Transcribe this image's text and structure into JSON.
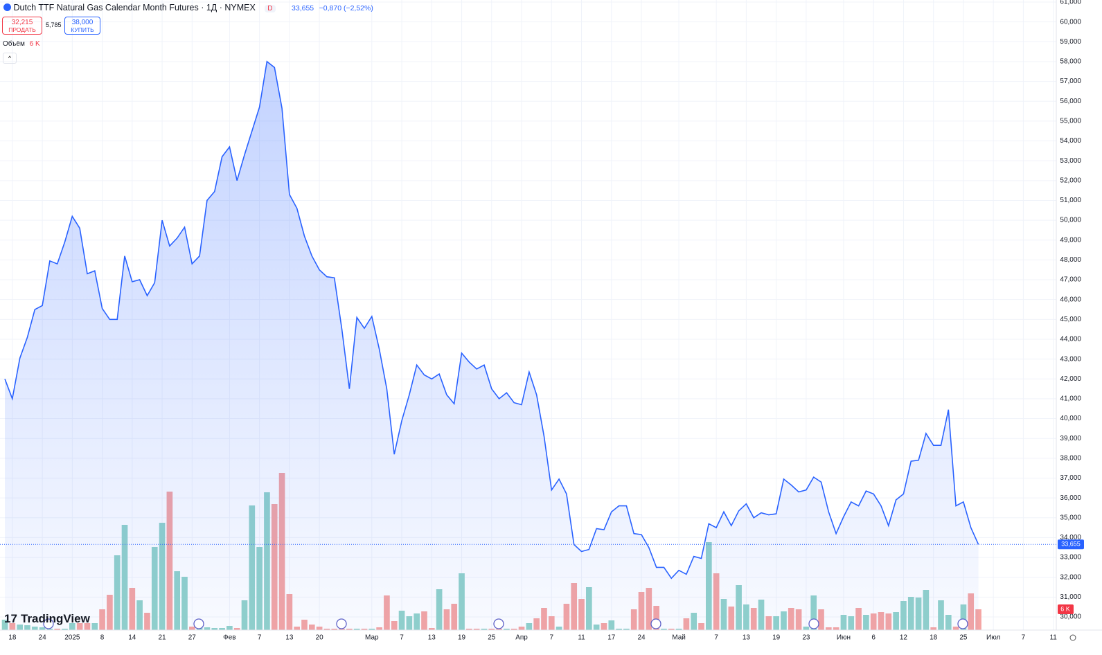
{
  "header": {
    "title": "Dutch TTF Natural Gas Calendar Month Futures · 1Д · NYMEX",
    "badge": "D",
    "last": "33,655",
    "change": "−0,870 (−2,52%)",
    "sell_price": "32,215",
    "sell_label": "ПРОДАТЬ",
    "spread": "5,785",
    "buy_price": "38,000",
    "buy_label": "КУПИТЬ",
    "volume_label": "Объём",
    "volume_value": "6 K",
    "logo": "TradingView"
  },
  "chart_data": {
    "type": "line",
    "color": "#2962ff",
    "grid": true,
    "values": [
      42000,
      41000,
      43050,
      44100,
      45500,
      45700,
      47950,
      47800,
      48900,
      50200,
      49600,
      47300,
      47450,
      45550,
      45000,
      45000,
      48200,
      46900,
      47000,
      46200,
      46850,
      50000,
      48700,
      49100,
      49650,
      47800,
      48200,
      51000,
      51450,
      53200,
      53700,
      52000,
      53300,
      54500,
      55700,
      58000,
      57700,
      55650,
      51300,
      50600,
      49200,
      48200,
      47500,
      47150,
      47100,
      44500,
      41500,
      45100,
      44550,
      45150,
      43500,
      41500,
      38200,
      39900,
      41200,
      42700,
      42200,
      42000,
      42250,
      41200,
      40750,
      43300,
      42850,
      42500,
      42700,
      41500,
      41000,
      41300,
      40800,
      40700,
      42350,
      41200,
      39100,
      36400,
      36950,
      36200,
      33650,
      33300,
      33400,
      34450,
      34400,
      35300,
      35600,
      35600,
      34200,
      34150,
      33500,
      32500,
      32500,
      31950,
      32350,
      32150,
      33050,
      32950,
      34700,
      34500,
      35300,
      34600,
      35350,
      35700,
      35000,
      35250,
      35150,
      35200,
      36950,
      36650,
      36300,
      36400,
      37050,
      36800,
      35300,
      34200,
      35050,
      35800,
      35600,
      36350,
      36200,
      35600,
      34600,
      35900,
      36200,
      37850,
      37900,
      39250,
      38650,
      38650,
      40450,
      35600,
      35800,
      34500,
      33655
    ],
    "volume": {
      "name": "Объём",
      "up_color": "#92d2ca",
      "down_color": "#f5a5a3",
      "values": [
        3000,
        2000,
        1600,
        1400,
        1000,
        800,
        400,
        400,
        400,
        2000,
        2000,
        2000,
        2000,
        6000,
        10200,
        21600,
        30400,
        12200,
        8600,
        5000,
        24000,
        31000,
        40000,
        17000,
        15400,
        1000,
        800,
        800,
        600,
        600,
        1200,
        600,
        8600,
        36000,
        24000,
        39800,
        36400,
        45400,
        10400,
        1000,
        3000,
        1600,
        1000,
        400,
        400,
        400,
        400,
        400,
        400,
        400,
        800,
        10000,
        2600,
        5600,
        4000,
        4800,
        5400,
        600,
        11800,
        6000,
        7600,
        16400,
        400,
        400,
        400,
        400,
        400,
        400,
        400,
        1000,
        2000,
        3400,
        6400,
        4000,
        1000,
        7600,
        13600,
        9000,
        12400,
        1600,
        2000,
        2800,
        400,
        400,
        6000,
        11000,
        12200,
        7000,
        400,
        400,
        400,
        3400,
        5000,
        2000,
        25400,
        16400,
        9000,
        6800,
        13000,
        7400,
        6400,
        8800,
        4000,
        4000,
        5400,
        6400,
        6000,
        1000,
        10000,
        6000,
        800,
        800,
        4400,
        4000,
        6400,
        4400,
        4800,
        5200,
        4800,
        5200,
        8400,
        9600,
        9400,
        11600,
        800,
        8600,
        4400,
        1000,
        7400,
        10600,
        6000
      ]
    },
    "xlim": [
      -0.65,
      140.4
    ],
    "ylim": [
      29337,
      61105
    ],
    "xticks": [
      {
        "value": 1,
        "label": "18"
      },
      {
        "value": 5,
        "label": "24"
      },
      {
        "value": 9,
        "label": "2025"
      },
      {
        "value": 13,
        "label": "8"
      },
      {
        "value": 17,
        "label": "14"
      },
      {
        "value": 21,
        "label": "21"
      },
      {
        "value": 25,
        "label": "27"
      },
      {
        "value": 30,
        "label": "Фев"
      },
      {
        "value": 34,
        "label": "7"
      },
      {
        "value": 38,
        "label": "13"
      },
      {
        "value": 42,
        "label": "20"
      },
      {
        "value": 49,
        "label": "Мар"
      },
      {
        "value": 53,
        "label": "7"
      },
      {
        "value": 57,
        "label": "13"
      },
      {
        "value": 61,
        "label": "19"
      },
      {
        "value": 65,
        "label": "25"
      },
      {
        "value": 69,
        "label": "Апр"
      },
      {
        "value": 73,
        "label": "7"
      },
      {
        "value": 77,
        "label": "11"
      },
      {
        "value": 81,
        "label": "17"
      },
      {
        "value": 85,
        "label": "24"
      },
      {
        "value": 90,
        "label": "Май"
      },
      {
        "value": 95,
        "label": "7"
      },
      {
        "value": 99,
        "label": "13"
      },
      {
        "value": 103,
        "label": "19"
      },
      {
        "value": 107,
        "label": "23"
      },
      {
        "value": 112,
        "label": "Июн"
      },
      {
        "value": 116,
        "label": "6"
      },
      {
        "value": 120,
        "label": "12"
      },
      {
        "value": 124,
        "label": "18"
      },
      {
        "value": 128,
        "label": "25"
      },
      {
        "value": 132,
        "label": "Июл"
      },
      {
        "value": 136,
        "label": "7"
      },
      {
        "value": 140,
        "label": "11"
      }
    ],
    "yticks": [
      {
        "value": 30000,
        "label": "30,000"
      },
      {
        "value": 31000,
        "label": "31,000"
      },
      {
        "value": 32000,
        "label": "32,000"
      },
      {
        "value": 33000,
        "label": "33,000"
      },
      {
        "value": 34000,
        "label": "34,000"
      },
      {
        "value": 35000,
        "label": "35,000"
      },
      {
        "value": 36000,
        "label": "36,000"
      },
      {
        "value": 37000,
        "label": "37,000"
      },
      {
        "value": 38000,
        "label": "38,000"
      },
      {
        "value": 39000,
        "label": "39,000"
      },
      {
        "value": 40000,
        "label": "40,000"
      },
      {
        "value": 41000,
        "label": "41,000"
      },
      {
        "value": 42000,
        "label": "42,000"
      },
      {
        "value": 43000,
        "label": "43,000"
      },
      {
        "value": 44000,
        "label": "44,000"
      },
      {
        "value": 45000,
        "label": "45,000"
      },
      {
        "value": 46000,
        "label": "46,000"
      },
      {
        "value": 47000,
        "label": "47,000"
      },
      {
        "value": 48000,
        "label": "48,000"
      },
      {
        "value": 49000,
        "label": "49,000"
      },
      {
        "value": 50000,
        "label": "50,000"
      },
      {
        "value": 51000,
        "label": "51,000"
      },
      {
        "value": 52000,
        "label": "52,000"
      },
      {
        "value": 53000,
        "label": "53,000"
      },
      {
        "value": 54000,
        "label": "54,000"
      },
      {
        "value": 55000,
        "label": "55,000"
      },
      {
        "value": 56000,
        "label": "56,000"
      },
      {
        "value": 57000,
        "label": "57,000"
      },
      {
        "value": 58000,
        "label": "58,000"
      },
      {
        "value": 59000,
        "label": "59,000"
      },
      {
        "value": 60000,
        "label": "60,000"
      },
      {
        "value": 61000,
        "label": "61,000"
      }
    ]
  }
}
